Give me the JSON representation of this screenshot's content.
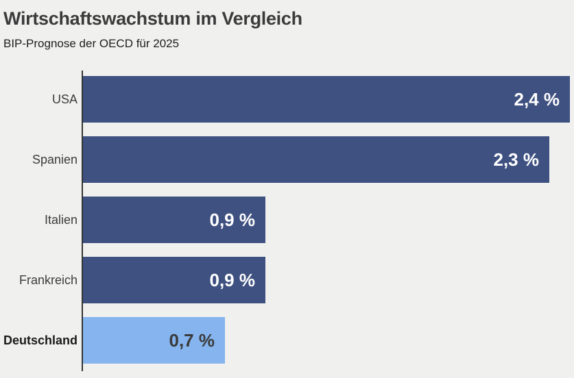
{
  "header": {
    "title": "Wirtschaftswachstum im Vergleich",
    "subtitle": "BIP-Prognose der OECD für 2025"
  },
  "chart_data": {
    "type": "bar",
    "orientation": "horizontal",
    "title": "Wirtschaftswachstum im Vergleich",
    "subtitle": "BIP-Prognose der OECD für 2025",
    "categories": [
      "USA",
      "Spanien",
      "Italien",
      "Frankreich",
      "Deutschland"
    ],
    "values": [
      2.4,
      2.3,
      0.9,
      0.9,
      0.7
    ],
    "value_labels": [
      "2,4 %",
      "2,3 %",
      "0,9 %",
      "0,9 %",
      "0,7 %"
    ],
    "unit": "%",
    "highlighted_category": "Deutschland",
    "xlabel": "",
    "ylabel": "",
    "xlim": [
      0,
      2.4
    ],
    "grid": false,
    "legend": false
  },
  "colors": {
    "background": "#f0f0ef",
    "bar_default": "#3f5181",
    "bar_highlight": "#85b4ee",
    "value_label_on_dark": "#ffffff",
    "value_label_on_light": "#3a3a3a",
    "axis_line": "#333333",
    "title_text": "#3b3b3b",
    "subtitle_text": "#1d1d1d",
    "category_label": "#3c3c3c",
    "category_label_highlight": "#1a1a1a"
  }
}
